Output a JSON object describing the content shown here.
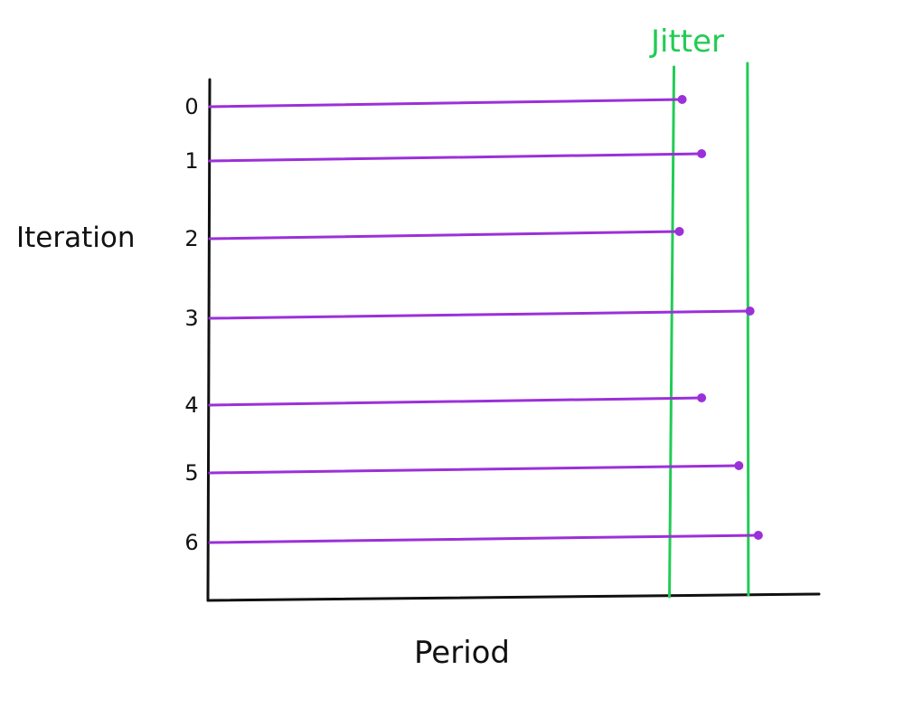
{
  "chart_data": {
    "type": "scatter",
    "title": "",
    "xlabel": "Period",
    "ylabel": "Iteration",
    "annotation": "Jitter",
    "x_range_label": "",
    "y": [
      0,
      1,
      2,
      3,
      4,
      5,
      6
    ],
    "tick_labels": [
      "0",
      "1",
      "2",
      "3",
      "4",
      "5",
      "6"
    ],
    "x": [
      0.853,
      0.888,
      0.848,
      0.975,
      0.888,
      0.955,
      0.99
    ],
    "xlim": [
      0,
      1
    ],
    "jitter_band": [
      0.835,
      0.99
    ],
    "colors": {
      "line": "#9b30d9",
      "point": "#9b30d9",
      "jitter": "#22cc55",
      "axis": "#111111",
      "text": "#111111"
    }
  }
}
